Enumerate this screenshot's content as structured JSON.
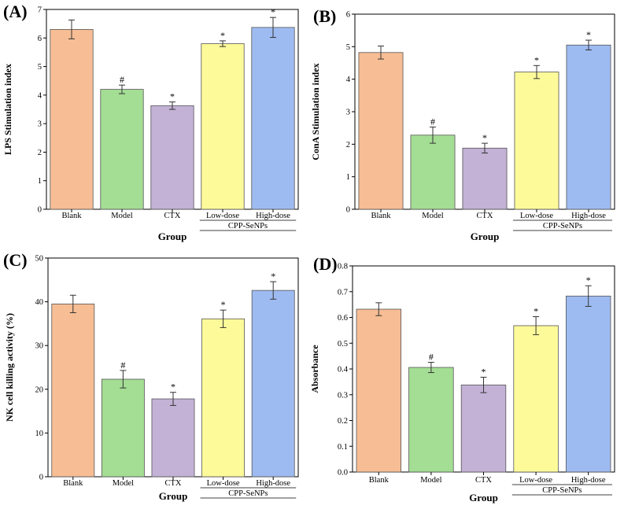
{
  "chart_data": [
    {
      "type": "bar",
      "panel": "(A)",
      "title": "",
      "xlabel": "Group",
      "ylabel": "LPS Stimulation index",
      "ylim": [
        0,
        7
      ],
      "yticks": [
        0,
        1,
        2,
        3,
        4,
        5,
        6,
        7
      ],
      "categories": [
        "Blank",
        "Model",
        "CTX",
        "Low-dose",
        "High-dose"
      ],
      "values": [
        6.3,
        4.2,
        3.63,
        5.8,
        6.37
      ],
      "errors": [
        0.33,
        0.15,
        0.13,
        0.1,
        0.35
      ],
      "significance": [
        "",
        "#",
        "*",
        "*",
        "*"
      ],
      "group_label": "CPP-SeNPs",
      "colors": [
        "#f7bd94",
        "#a4dd94",
        "#c3b1d6",
        "#fdfa9a",
        "#9ebbf1"
      ],
      "grid": false,
      "legend": "none"
    },
    {
      "type": "bar",
      "panel": "(B)",
      "title": "",
      "xlabel": "Group",
      "ylabel": "ConA Stimulation index",
      "ylim": [
        0,
        6
      ],
      "yticks": [
        0,
        1,
        2,
        3,
        4,
        5,
        6
      ],
      "categories": [
        "Blank",
        "Model",
        "CTX",
        "Low-dose",
        "High-dose"
      ],
      "values": [
        4.82,
        2.28,
        1.88,
        4.22,
        5.05
      ],
      "errors": [
        0.2,
        0.25,
        0.15,
        0.2,
        0.15
      ],
      "significance": [
        "",
        "#",
        "*",
        "*",
        "*"
      ],
      "group_label": "CPP-SeNPs",
      "colors": [
        "#f7bd94",
        "#a4dd94",
        "#c3b1d6",
        "#fdfa9a",
        "#9ebbf1"
      ],
      "grid": false,
      "legend": "none"
    },
    {
      "type": "bar",
      "panel": "(C)",
      "title": "",
      "xlabel": "Group",
      "ylabel": "NK cell killing activity (%)",
      "ylim": [
        0,
        50
      ],
      "yticks": [
        0,
        10,
        20,
        30,
        40,
        50
      ],
      "categories": [
        "Blank",
        "Model",
        "CTX",
        "Low-dose",
        "High-dose"
      ],
      "values": [
        39.5,
        22.3,
        17.8,
        36.1,
        42.6
      ],
      "errors": [
        2.0,
        2.0,
        1.5,
        2.0,
        2.0
      ],
      "significance": [
        "",
        "#",
        "*",
        "*",
        "*"
      ],
      "group_label": "CPP-SeNPs",
      "colors": [
        "#f7bd94",
        "#a4dd94",
        "#c3b1d6",
        "#fdfa9a",
        "#9ebbf1"
      ],
      "grid": false,
      "legend": "none"
    },
    {
      "type": "bar",
      "panel": "(D)",
      "title": "",
      "xlabel": "Group",
      "ylabel": "Absorbance",
      "ylim": [
        0,
        0.8
      ],
      "yticks": [
        0.0,
        0.1,
        0.2,
        0.3,
        0.4,
        0.5,
        0.6,
        0.7,
        0.8
      ],
      "ytick_labels": [
        "0.0",
        "0.1",
        "0.2",
        "0.3",
        "0.4",
        "0.5",
        "0.6",
        "0.7",
        "0.8"
      ],
      "categories": [
        "Blank",
        "Model",
        "CTX",
        "Low-dose",
        "High-dose"
      ],
      "values": [
        0.632,
        0.406,
        0.338,
        0.568,
        0.683
      ],
      "errors": [
        0.025,
        0.02,
        0.03,
        0.035,
        0.04
      ],
      "significance": [
        "",
        "#",
        "*",
        "*",
        "*"
      ],
      "group_label": "CPP-SeNPs",
      "colors": [
        "#f7bd94",
        "#a4dd94",
        "#c3b1d6",
        "#fdfa9a",
        "#9ebbf1"
      ],
      "grid": false,
      "legend": "none"
    }
  ]
}
